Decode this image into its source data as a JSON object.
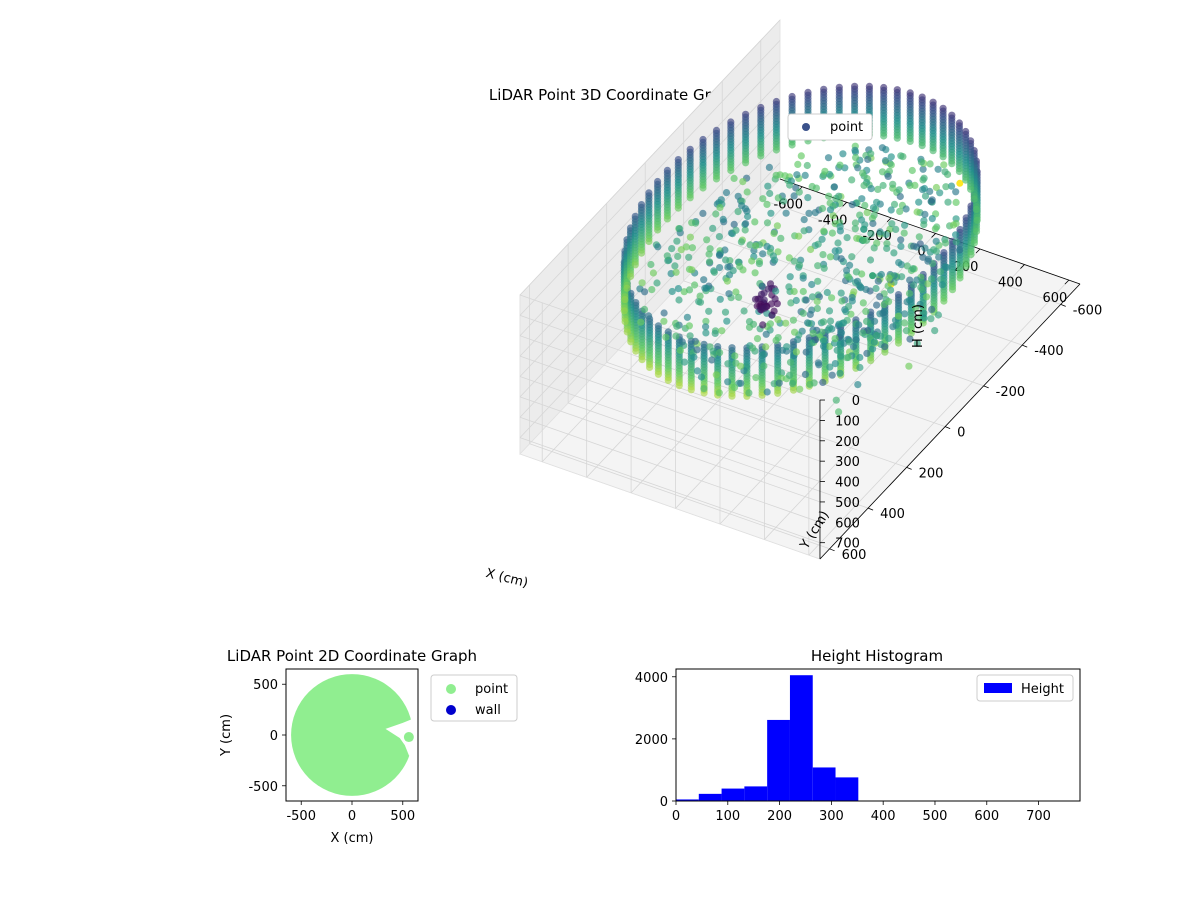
{
  "chart_data": [
    {
      "type": "scatter",
      "projection": "3d",
      "title": "LiDAR Point 3D Coordinate Graph",
      "xlabel": "X (cm)",
      "ylabel": "Y (cm)",
      "zlabel": "H (cm)",
      "xlim": [
        -700,
        650
      ],
      "ylim": [
        -700,
        650
      ],
      "zlim": [
        0,
        780
      ],
      "z_inverted": true,
      "xticks": [
        -600,
        -400,
        -200,
        0,
        200,
        400,
        600
      ],
      "yticks": [
        -600,
        -400,
        -200,
        0,
        200,
        400,
        600
      ],
      "zticks": [
        0,
        100,
        200,
        300,
        400,
        500,
        600,
        700
      ],
      "grid": true,
      "colormap": "viridis",
      "legend": {
        "position": "top-right",
        "entries": [
          {
            "label": "point",
            "color": "#3b528b"
          }
        ]
      },
      "ring": {
        "radius": 600,
        "h_top": 0,
        "h_bottom": 250
      },
      "outliers": [
        {
          "x": 150,
          "y": -200,
          "h": 430
        },
        {
          "x": 520,
          "y": 130,
          "h": 0
        },
        {
          "x": 430,
          "y": -330,
          "h": 0
        }
      ]
    },
    {
      "type": "scatter",
      "title": "LiDAR Point 2D Coordinate Graph",
      "xlabel": "X (cm)",
      "ylabel": "Y (cm)",
      "xlim": [
        -650,
        650
      ],
      "ylim": [
        -650,
        650
      ],
      "xticks": [
        -500,
        0,
        500
      ],
      "yticks": [
        -500,
        0,
        500
      ],
      "legend": {
        "position": "right",
        "entries": [
          {
            "label": "point",
            "color": "#90ee90"
          },
          {
            "label": "wall",
            "color": "#0000cd"
          }
        ]
      },
      "disk": {
        "cx": 0,
        "cy": 0,
        "r": 600
      }
    },
    {
      "type": "bar",
      "subtype": "histogram",
      "title": "Height Histogram",
      "xlim": [
        0,
        780
      ],
      "ylim": [
        0,
        4250
      ],
      "xticks": [
        0,
        100,
        200,
        300,
        400,
        500,
        600,
        700
      ],
      "yticks": [
        0,
        2000,
        4000
      ],
      "series": [
        {
          "name": "Height",
          "color": "#0000ff",
          "bins": [
            0,
            44,
            88,
            132,
            176,
            220,
            264,
            308,
            352
          ],
          "values": [
            50,
            230,
            400,
            470,
            2610,
            4050,
            1080,
            760
          ]
        }
      ],
      "legend": {
        "position": "top-right"
      }
    }
  ]
}
